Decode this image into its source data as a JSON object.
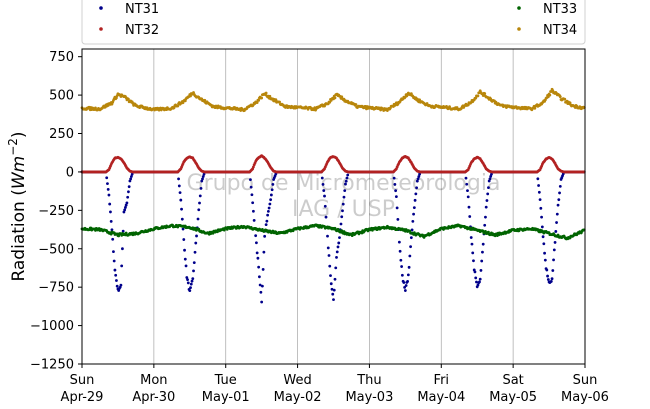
{
  "chart_data": {
    "type": "scatter",
    "title": "",
    "xlabel": "",
    "ylabel": "Radiation (Wm^-2)",
    "ylim": [
      -1250,
      800
    ],
    "yticks": [
      -1250,
      -1000,
      -750,
      -500,
      -250,
      0,
      250,
      500,
      750
    ],
    "xlim": [
      "2018-04-29",
      "2018-05-06"
    ],
    "x_ticks": [
      {
        "date": "2018-04-29",
        "day": "Sun",
        "label": "Apr-29"
      },
      {
        "date": "2018-04-30",
        "day": "Mon",
        "label": "Apr-30"
      },
      {
        "date": "2018-05-01",
        "day": "Tue",
        "label": "May-01"
      },
      {
        "date": "2018-05-02",
        "day": "Wed",
        "label": "May-02"
      },
      {
        "date": "2018-05-03",
        "day": "Thu",
        "label": "May-03"
      },
      {
        "date": "2018-05-04",
        "day": "Fri",
        "label": "May-04"
      },
      {
        "date": "2018-05-05",
        "day": "Sat",
        "label": "May-05"
      },
      {
        "date": "2018-05-06",
        "day": "Sun",
        "label": "May-06"
      }
    ],
    "grid": "vertical",
    "legend_position": "top",
    "watermark": [
      "Grupo de Micrometeorologia",
      "IAG / USP"
    ],
    "series": [
      {
        "name": "NT31",
        "color": "#00008b",
        "points": [
          [
            "2018-04-29 00:00",
            0
          ],
          [
            "2018-04-29 08:00",
            0
          ],
          [
            "2018-04-29 09:00",
            -150
          ],
          [
            "2018-04-29 10:00",
            -380
          ],
          [
            "2018-04-29 11:00",
            -640
          ],
          [
            "2018-04-29 12:00",
            -770
          ],
          [
            "2018-04-29 13:00",
            -740
          ],
          [
            "2018-04-29 14:00",
            -260
          ],
          [
            "2018-04-29 15:00",
            -200
          ],
          [
            "2018-04-29 16:00",
            -60
          ],
          [
            "2018-04-29 17:00",
            0
          ],
          [
            "2018-04-30 08:00",
            0
          ],
          [
            "2018-04-30 09:00",
            -180
          ],
          [
            "2018-04-30 10:00",
            -440
          ],
          [
            "2018-04-30 11:00",
            -680
          ],
          [
            "2018-04-30 12:00",
            -780
          ],
          [
            "2018-04-30 13:00",
            -700
          ],
          [
            "2018-04-30 14:00",
            -470
          ],
          [
            "2018-04-30 15:00",
            -250
          ],
          [
            "2018-04-30 16:00",
            -60
          ],
          [
            "2018-04-30 17:00",
            0
          ],
          [
            "2018-05-01 08:00",
            0
          ],
          [
            "2018-05-01 09:00",
            -200
          ],
          [
            "2018-05-01 10:00",
            -420
          ],
          [
            "2018-05-01 11:00",
            -620
          ],
          [
            "2018-05-01 12:00",
            -840
          ],
          [
            "2018-05-01 13:00",
            -420
          ],
          [
            "2018-05-01 14:00",
            -280
          ],
          [
            "2018-05-01 15:00",
            -180
          ],
          [
            "2018-05-01 16:00",
            -50
          ],
          [
            "2018-05-01 17:00",
            0
          ],
          [
            "2018-05-02 08:00",
            0
          ],
          [
            "2018-05-02 09:00",
            -160
          ],
          [
            "2018-05-02 10:00",
            -420
          ],
          [
            "2018-05-02 11:00",
            -680
          ],
          [
            "2018-05-02 12:00",
            -840
          ],
          [
            "2018-05-02 13:00",
            -560
          ],
          [
            "2018-05-02 14:00",
            -420
          ],
          [
            "2018-05-02 15:00",
            -250
          ],
          [
            "2018-05-02 16:00",
            -80
          ],
          [
            "2018-05-02 17:00",
            0
          ],
          [
            "2018-05-03 08:00",
            0
          ],
          [
            "2018-05-03 09:00",
            -160
          ],
          [
            "2018-05-03 10:00",
            -450
          ],
          [
            "2018-05-03 11:00",
            -680
          ],
          [
            "2018-05-03 12:00",
            -770
          ],
          [
            "2018-05-03 13:00",
            -680
          ],
          [
            "2018-05-03 14:00",
            -420
          ],
          [
            "2018-05-03 15:00",
            -230
          ],
          [
            "2018-05-03 16:00",
            -60
          ],
          [
            "2018-05-03 17:00",
            0
          ],
          [
            "2018-05-04 08:00",
            0
          ],
          [
            "2018-05-04 09:00",
            -160
          ],
          [
            "2018-05-04 10:00",
            -420
          ],
          [
            "2018-05-04 11:00",
            -630
          ],
          [
            "2018-05-04 12:00",
            -740
          ],
          [
            "2018-05-04 13:00",
            -700
          ],
          [
            "2018-05-04 14:00",
            -470
          ],
          [
            "2018-05-04 15:00",
            -230
          ],
          [
            "2018-05-04 16:00",
            -60
          ],
          [
            "2018-05-04 17:00",
            0
          ],
          [
            "2018-05-05 08:00",
            0
          ],
          [
            "2018-05-05 09:00",
            -180
          ],
          [
            "2018-05-05 10:00",
            -420
          ],
          [
            "2018-05-05 11:00",
            -620
          ],
          [
            "2018-05-05 12:00",
            -720
          ],
          [
            "2018-05-05 13:00",
            -700
          ],
          [
            "2018-05-05 14:00",
            -450
          ],
          [
            "2018-05-05 15:00",
            -220
          ],
          [
            "2018-05-05 16:00",
            -50
          ],
          [
            "2018-05-05 17:00",
            0
          ],
          [
            "2018-05-06 00:00",
            0
          ]
        ]
      },
      {
        "name": "NT32",
        "color": "#b22222",
        "points": [
          [
            "2018-04-29 00:00",
            0
          ],
          [
            "2018-04-29 08:00",
            0
          ],
          [
            "2018-04-29 09:00",
            15
          ],
          [
            "2018-04-29 10:00",
            60
          ],
          [
            "2018-04-29 11:00",
            90
          ],
          [
            "2018-04-29 12:00",
            95
          ],
          [
            "2018-04-29 13:00",
            85
          ],
          [
            "2018-04-29 14:00",
            60
          ],
          [
            "2018-04-29 15:00",
            25
          ],
          [
            "2018-04-29 16:00",
            5
          ],
          [
            "2018-04-29 17:00",
            0
          ],
          [
            "2018-04-30 08:00",
            0
          ],
          [
            "2018-04-30 09:00",
            20
          ],
          [
            "2018-04-30 10:00",
            65
          ],
          [
            "2018-04-30 11:00",
            90
          ],
          [
            "2018-04-30 12:00",
            100
          ],
          [
            "2018-04-30 13:00",
            90
          ],
          [
            "2018-04-30 14:00",
            60
          ],
          [
            "2018-04-30 15:00",
            25
          ],
          [
            "2018-04-30 16:00",
            5
          ],
          [
            "2018-04-30 17:00",
            0
          ],
          [
            "2018-05-01 08:00",
            0
          ],
          [
            "2018-05-01 09:00",
            20
          ],
          [
            "2018-05-01 10:00",
            70
          ],
          [
            "2018-05-01 11:00",
            95
          ],
          [
            "2018-05-01 12:00",
            105
          ],
          [
            "2018-05-01 13:00",
            90
          ],
          [
            "2018-05-01 14:00",
            65
          ],
          [
            "2018-05-01 15:00",
            30
          ],
          [
            "2018-05-01 16:00",
            5
          ],
          [
            "2018-05-01 17:00",
            0
          ],
          [
            "2018-05-02 08:00",
            0
          ],
          [
            "2018-05-02 09:00",
            20
          ],
          [
            "2018-05-02 10:00",
            65
          ],
          [
            "2018-05-02 11:00",
            95
          ],
          [
            "2018-05-02 12:00",
            100
          ],
          [
            "2018-05-02 13:00",
            90
          ],
          [
            "2018-05-02 14:00",
            60
          ],
          [
            "2018-05-02 15:00",
            25
          ],
          [
            "2018-05-02 16:00",
            5
          ],
          [
            "2018-05-02 17:00",
            0
          ],
          [
            "2018-05-03 08:00",
            0
          ],
          [
            "2018-05-03 09:00",
            20
          ],
          [
            "2018-05-03 10:00",
            65
          ],
          [
            "2018-05-03 11:00",
            90
          ],
          [
            "2018-05-03 12:00",
            100
          ],
          [
            "2018-05-03 13:00",
            90
          ],
          [
            "2018-05-03 14:00",
            60
          ],
          [
            "2018-05-03 15:00",
            25
          ],
          [
            "2018-05-03 16:00",
            5
          ],
          [
            "2018-05-03 17:00",
            0
          ],
          [
            "2018-05-04 08:00",
            0
          ],
          [
            "2018-05-04 09:00",
            15
          ],
          [
            "2018-05-04 10:00",
            60
          ],
          [
            "2018-05-04 11:00",
            85
          ],
          [
            "2018-05-04 12:00",
            95
          ],
          [
            "2018-05-04 13:00",
            85
          ],
          [
            "2018-05-04 14:00",
            55
          ],
          [
            "2018-05-04 15:00",
            20
          ],
          [
            "2018-05-04 16:00",
            5
          ],
          [
            "2018-05-04 17:00",
            0
          ],
          [
            "2018-05-05 08:00",
            0
          ],
          [
            "2018-05-05 09:00",
            15
          ],
          [
            "2018-05-05 10:00",
            60
          ],
          [
            "2018-05-05 11:00",
            85
          ],
          [
            "2018-05-05 12:00",
            95
          ],
          [
            "2018-05-05 13:00",
            85
          ],
          [
            "2018-05-05 14:00",
            55
          ],
          [
            "2018-05-05 15:00",
            20
          ],
          [
            "2018-05-05 16:00",
            5
          ],
          [
            "2018-05-05 17:00",
            0
          ],
          [
            "2018-05-06 00:00",
            0
          ]
        ]
      },
      {
        "name": "NT33",
        "color": "#006400",
        "points": [
          [
            "2018-04-29 00:00",
            -370
          ],
          [
            "2018-04-29 06:00",
            -375
          ],
          [
            "2018-04-29 12:00",
            -410
          ],
          [
            "2018-04-29 18:00",
            -400
          ],
          [
            "2018-04-30 00:00",
            -370
          ],
          [
            "2018-04-30 06:00",
            -350
          ],
          [
            "2018-04-30 12:00",
            -360
          ],
          [
            "2018-04-30 18:00",
            -400
          ],
          [
            "2018-05-01 00:00",
            -370
          ],
          [
            "2018-05-01 06:00",
            -355
          ],
          [
            "2018-05-01 12:00",
            -380
          ],
          [
            "2018-05-01 18:00",
            -400
          ],
          [
            "2018-05-02 00:00",
            -370
          ],
          [
            "2018-05-02 06:00",
            -350
          ],
          [
            "2018-05-02 12:00",
            -370
          ],
          [
            "2018-05-02 18:00",
            -410
          ],
          [
            "2018-05-03 00:00",
            -375
          ],
          [
            "2018-05-03 06:00",
            -360
          ],
          [
            "2018-05-03 12:00",
            -380
          ],
          [
            "2018-05-03 18:00",
            -420
          ],
          [
            "2018-05-04 00:00",
            -370
          ],
          [
            "2018-05-04 06:00",
            -350
          ],
          [
            "2018-05-04 12:00",
            -380
          ],
          [
            "2018-05-04 18:00",
            -410
          ],
          [
            "2018-05-05 00:00",
            -380
          ],
          [
            "2018-05-05 06:00",
            -370
          ],
          [
            "2018-05-05 12:00",
            -400
          ],
          [
            "2018-05-05 18:00",
            -430
          ],
          [
            "2018-05-06 00:00",
            -380
          ]
        ]
      },
      {
        "name": "NT34",
        "color": "#b8860b",
        "points": [
          [
            "2018-04-29 00:00",
            415
          ],
          [
            "2018-04-29 06:00",
            410
          ],
          [
            "2018-04-29 10:00",
            450
          ],
          [
            "2018-04-29 12:00",
            505
          ],
          [
            "2018-04-29 14:00",
            490
          ],
          [
            "2018-04-29 18:00",
            430
          ],
          [
            "2018-04-30 00:00",
            405
          ],
          [
            "2018-04-30 06:00",
            415
          ],
          [
            "2018-04-30 10:00",
            460
          ],
          [
            "2018-04-30 13:00",
            515
          ],
          [
            "2018-04-30 16:00",
            470
          ],
          [
            "2018-04-30 20:00",
            425
          ],
          [
            "2018-05-01 06:00",
            405
          ],
          [
            "2018-05-01 10:00",
            450
          ],
          [
            "2018-05-01 13:00",
            510
          ],
          [
            "2018-05-01 16:00",
            470
          ],
          [
            "2018-05-01 20:00",
            425
          ],
          [
            "2018-05-02 06:00",
            410
          ],
          [
            "2018-05-02 10:00",
            445
          ],
          [
            "2018-05-02 13:00",
            500
          ],
          [
            "2018-05-02 16:00",
            465
          ],
          [
            "2018-05-02 20:00",
            425
          ],
          [
            "2018-05-03 06:00",
            405
          ],
          [
            "2018-05-03 10:00",
            455
          ],
          [
            "2018-05-03 13:00",
            515
          ],
          [
            "2018-05-03 16:00",
            470
          ],
          [
            "2018-05-03 20:00",
            430
          ],
          [
            "2018-05-04 06:00",
            410
          ],
          [
            "2018-05-04 10:00",
            455
          ],
          [
            "2018-05-04 13:00",
            520
          ],
          [
            "2018-05-04 16:00",
            480
          ],
          [
            "2018-05-04 20:00",
            430
          ],
          [
            "2018-05-05 06:00",
            410
          ],
          [
            "2018-05-05 10:00",
            450
          ],
          [
            "2018-05-05 13:00",
            530
          ],
          [
            "2018-05-05 16:00",
            480
          ],
          [
            "2018-05-05 20:00",
            430
          ],
          [
            "2018-05-06 00:00",
            415
          ]
        ]
      }
    ]
  }
}
